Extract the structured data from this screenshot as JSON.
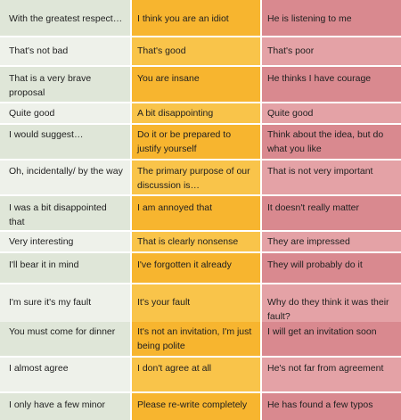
{
  "table": {
    "rows": [
      {
        "what_they_say": "With the greatest respect…",
        "what_they_mean": "I think you are an idiot",
        "what_others_understand": "He is listening to me"
      },
      {
        "what_they_say": "That's not bad",
        "what_they_mean": "That's good",
        "what_others_understand": "That's poor"
      },
      {
        "what_they_say": "That is a very brave proposal",
        "what_they_mean": "You are insane",
        "what_others_understand": "He thinks I have courage"
      },
      {
        "what_they_say": "Quite good",
        "what_they_mean": "A bit disappointing",
        "what_others_understand": "Quite good"
      },
      {
        "what_they_say": "I would suggest…",
        "what_they_mean": "Do it or be prepared to justify yourself",
        "what_others_understand": "Think about the idea, but do what you like"
      },
      {
        "what_they_say": "Oh, incidentally/ by the way",
        "what_they_mean": "The primary purpose of our discussion is…",
        "what_others_understand": "That is not very important"
      },
      {
        "what_they_say": "I was a bit disappointed that",
        "what_they_mean": "I am annoyed that",
        "what_others_understand": "It doesn't really matter"
      },
      {
        "what_they_say": "Very interesting",
        "what_they_mean": "That is clearly nonsense",
        "what_others_understand": "They are impressed"
      },
      {
        "what_they_say": "I'll bear it in mind",
        "what_they_mean": "I've forgotten it already",
        "what_others_understand": "They will probably do it"
      },
      {
        "what_they_say": "I'm sure it's my fault",
        "what_they_mean": "It's your fault",
        "what_others_understand": "Why do they think it was their fault?"
      },
      {
        "what_they_say": "You must come for dinner",
        "what_they_mean": "It's not an invitation, I'm just being polite",
        "what_others_understand": "I will get an invitation soon"
      },
      {
        "what_they_say": "I almost agree",
        "what_they_mean": "I don't agree at all",
        "what_others_understand": "He's not far from agreement"
      },
      {
        "what_they_say": "I only have a few minor",
        "what_they_mean": "Please re-write completely",
        "what_others_understand": "He has found a few typos"
      }
    ]
  },
  "colors": {
    "col1": "#dfe6d8",
    "col2": "#f7b52f",
    "col3": "#d9898f"
  }
}
